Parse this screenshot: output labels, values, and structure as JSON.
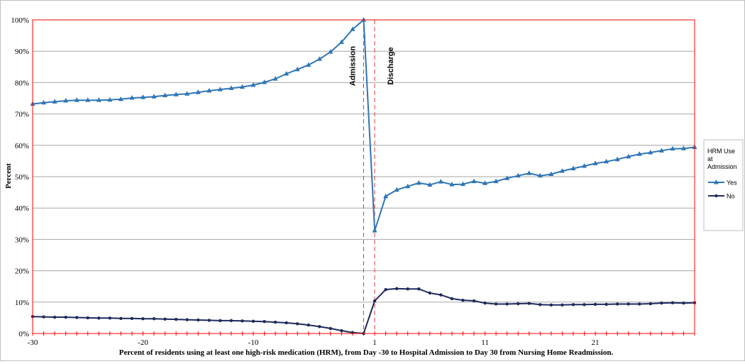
{
  "chart_data": {
    "type": "line",
    "xlabel": "Percent of residents using at least one high-risk medication (HRM), from Day -30 to Hospital Admission to Day 30 from Nursing Home Readmission.",
    "ylabel": "Percent",
    "ylim": [
      0,
      100
    ],
    "y_ticks": [
      "0%",
      "10%",
      "20%",
      "30%",
      "40%",
      "50%",
      "60%",
      "70%",
      "80%",
      "90%",
      "100%"
    ],
    "x_tick_labels": [
      "-30",
      "-20",
      "-10",
      "1",
      "11",
      "21"
    ],
    "x_tick_values": [
      -30,
      -20,
      -10,
      1,
      11,
      21
    ],
    "xlim": [
      -30,
      30
    ],
    "grid": true,
    "legend": {
      "title": "HRM Use at Admission",
      "position": "right"
    },
    "annotations": [
      {
        "label": "Admission",
        "x": 0
      },
      {
        "label": "Discharge",
        "x": 1
      }
    ],
    "colors": {
      "Yes": "#2e75b6",
      "No": "#1f2a5c",
      "plot_border": "#ff0000",
      "ref_line": "#e03a3a"
    },
    "series": [
      {
        "name": "Yes",
        "x": [
          -30,
          -29,
          -28,
          -27,
          -26,
          -25,
          -24,
          -23,
          -22,
          -21,
          -20,
          -19,
          -18,
          -17,
          -16,
          -15,
          -14,
          -13,
          -12,
          -11,
          -10,
          -9,
          -8,
          -7,
          -6,
          -5,
          -4,
          -3,
          -2,
          -1,
          0,
          1,
          2,
          3,
          4,
          5,
          6,
          7,
          8,
          9,
          10,
          11,
          12,
          13,
          14,
          15,
          16,
          17,
          18,
          19,
          20,
          21,
          22,
          23,
          24,
          25,
          26,
          27,
          28,
          29,
          30
        ],
        "values": [
          73.2,
          73.6,
          73.9,
          74.2,
          74.4,
          74.4,
          74.4,
          74.5,
          74.7,
          75.1,
          75.3,
          75.5,
          75.9,
          76.2,
          76.4,
          76.9,
          77.4,
          77.8,
          78.2,
          78.6,
          79.2,
          80.1,
          81.2,
          82.8,
          84.2,
          85.6,
          87.5,
          89.8,
          92.9,
          97.0,
          100.0,
          32.8,
          43.7,
          45.8,
          46.9,
          48.0,
          47.4,
          48.4,
          47.5,
          47.6,
          48.5,
          47.9,
          48.5,
          49.5,
          50.3,
          51.1,
          50.3,
          50.8,
          51.8,
          52.6,
          53.4,
          54.2,
          54.8,
          55.5,
          56.4,
          57.2,
          57.7,
          58.3,
          58.9,
          59.0,
          59.4
        ]
      },
      {
        "name": "No",
        "x": [
          -30,
          -29,
          -28,
          -27,
          -26,
          -25,
          -24,
          -23,
          -22,
          -21,
          -20,
          -19,
          -18,
          -17,
          -16,
          -15,
          -14,
          -13,
          -12,
          -11,
          -10,
          -9,
          -8,
          -7,
          -6,
          -5,
          -4,
          -3,
          -2,
          -1,
          0,
          1,
          2,
          3,
          4,
          5,
          6,
          7,
          8,
          9,
          10,
          11,
          12,
          13,
          14,
          15,
          16,
          17,
          18,
          19,
          20,
          21,
          22,
          23,
          24,
          25,
          26,
          27,
          28,
          29,
          30
        ],
        "values": [
          5.4,
          5.3,
          5.2,
          5.2,
          5.1,
          5.0,
          4.9,
          4.9,
          4.8,
          4.8,
          4.7,
          4.7,
          4.6,
          4.5,
          4.4,
          4.3,
          4.2,
          4.1,
          4.1,
          4.0,
          3.9,
          3.8,
          3.6,
          3.4,
          3.1,
          2.7,
          2.2,
          1.6,
          0.9,
          0.3,
          0.0,
          10.4,
          14.0,
          14.3,
          14.2,
          14.2,
          12.9,
          12.3,
          11.1,
          10.6,
          10.4,
          9.7,
          9.4,
          9.4,
          9.5,
          9.6,
          9.2,
          9.1,
          9.1,
          9.2,
          9.2,
          9.3,
          9.3,
          9.4,
          9.4,
          9.4,
          9.5,
          9.7,
          9.8,
          9.7,
          9.8
        ]
      }
    ]
  }
}
